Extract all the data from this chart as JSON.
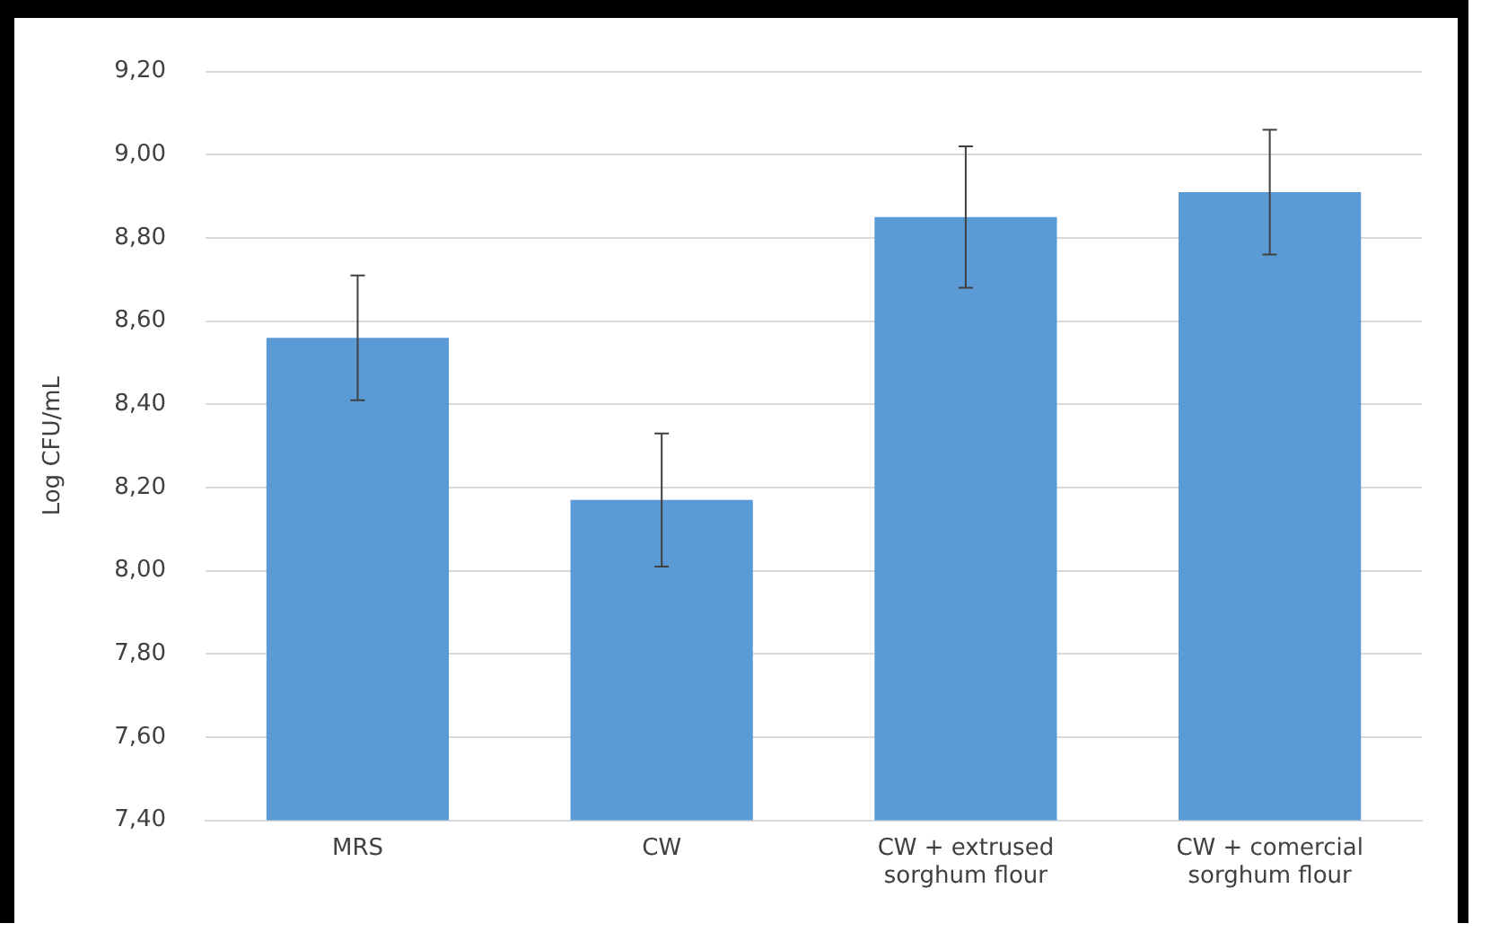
{
  "chart_data": {
    "type": "bar",
    "ylabel": "Log CFU/mL",
    "categories": [
      "MRS",
      "CW",
      "CW + extrused sorghum flour",
      "CW + comercial sorghum flour"
    ],
    "values": [
      8.56,
      8.17,
      8.85,
      8.91
    ],
    "errors": [
      0.15,
      0.16,
      0.17,
      0.15
    ],
    "color": "#5b9bd5",
    "ylim": [
      7.4,
      9.2
    ],
    "yticks": [
      {
        "value": 7.4,
        "label": "7,40"
      },
      {
        "value": 7.6,
        "label": "7,60"
      },
      {
        "value": 7.8,
        "label": "7,80"
      },
      {
        "value": 8.0,
        "label": "8,00"
      },
      {
        "value": 8.2,
        "label": "8,20"
      },
      {
        "value": 8.4,
        "label": "8,40"
      },
      {
        "value": 8.6,
        "label": "8,60"
      },
      {
        "value": 8.8,
        "label": "8,80"
      },
      {
        "value": 9.0,
        "label": "9,00"
      },
      {
        "value": 9.2,
        "label": "9,20"
      }
    ],
    "grid": "y",
    "legend": false
  }
}
